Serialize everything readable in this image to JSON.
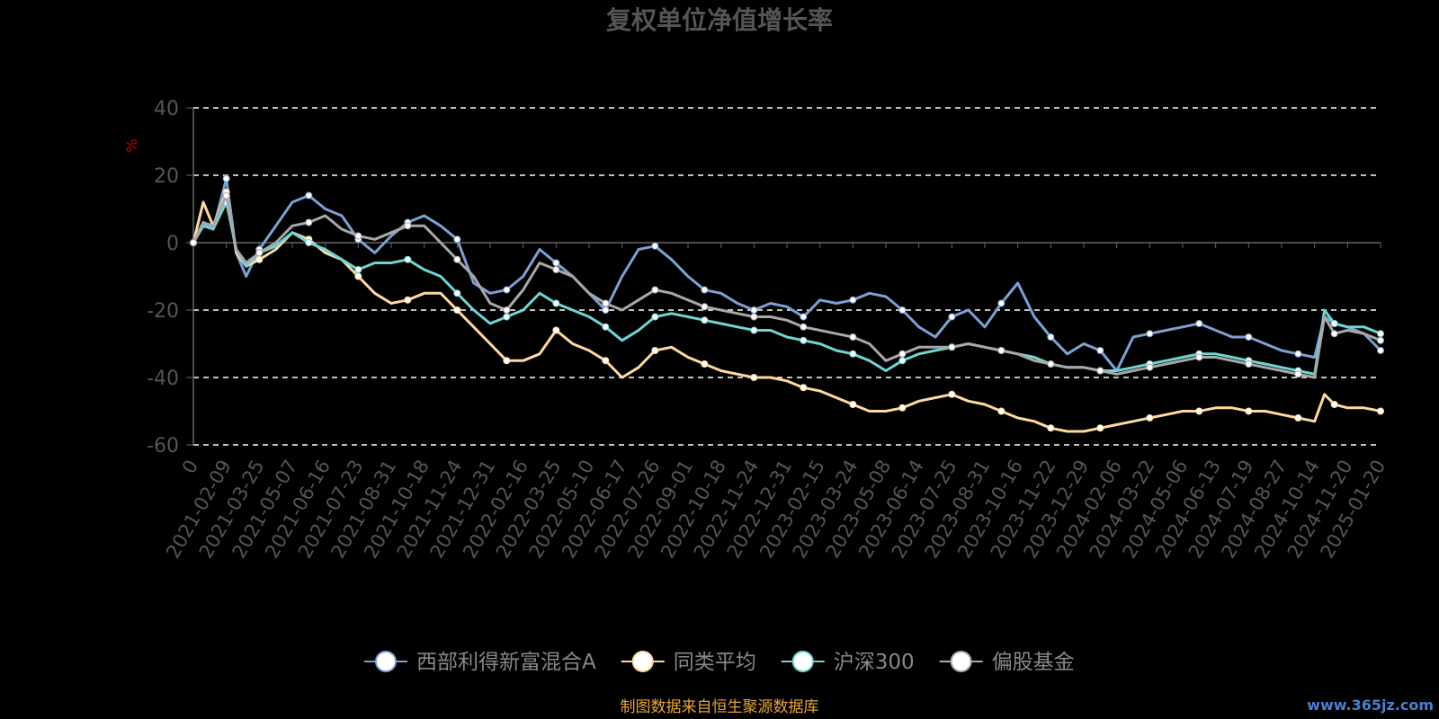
{
  "chart_data": {
    "type": "line",
    "title": "复权单位净值增长率",
    "ylabel": "%",
    "ylim": [
      -60,
      40
    ],
    "yticks": [
      40,
      20,
      0,
      -20,
      -40,
      -60
    ],
    "grid": true,
    "legend_position": "bottom",
    "x_tick_labels": [
      "0",
      "2021-02-09",
      "2021-03-25",
      "2021-05-07",
      "2021-06-16",
      "2021-07-23",
      "2021-08-31",
      "2021-10-18",
      "2021-11-24",
      "2021-12-31",
      "2022-02-16",
      "2022-03-25",
      "2022-05-10",
      "2022-06-17",
      "2022-07-26",
      "2022-09-01",
      "2022-10-18",
      "2022-11-24",
      "2022-12-31",
      "2023-02-15",
      "2023-03-24",
      "2023-05-08",
      "2023-06-14",
      "2023-07-25",
      "2023-08-31",
      "2023-10-16",
      "2023-11-22",
      "2023-12-29",
      "2024-02-06",
      "2024-03-22",
      "2024-05-06",
      "2024-06-13",
      "2024-07-19",
      "2024-08-27",
      "2024-10-14",
      "2024-11-20",
      "2025-01-20"
    ],
    "x": [
      0,
      0.3,
      0.6,
      1,
      1.3,
      1.6,
      2,
      2.5,
      3,
      3.5,
      4,
      4.5,
      5,
      5.5,
      6,
      6.5,
      7,
      7.5,
      8,
      8.5,
      9,
      9.5,
      10,
      10.5,
      11,
      11.5,
      12,
      12.5,
      13,
      13.5,
      14,
      14.5,
      15,
      15.5,
      16,
      16.5,
      17,
      17.5,
      18,
      18.5,
      19,
      19.5,
      20,
      20.5,
      21,
      21.5,
      22,
      22.5,
      23,
      23.5,
      24,
      24.5,
      25,
      25.5,
      26,
      26.5,
      27,
      27.5,
      28,
      28.5,
      29,
      29.5,
      30,
      30.5,
      31,
      31.5,
      32,
      32.5,
      33,
      33.5,
      34,
      34.3,
      34.6,
      35,
      35.5,
      36
    ],
    "series": [
      {
        "name": "西部利得新富混合A",
        "color": "#7f9fd4",
        "values": [
          0,
          6,
          4,
          19,
          -3,
          -10,
          -2,
          5,
          12,
          14,
          10,
          8,
          1,
          -3,
          2,
          6,
          8,
          5,
          1,
          -12,
          -15,
          -14,
          -10,
          -2,
          -6,
          -10,
          -15,
          -20,
          -10,
          -2,
          -1,
          -5,
          -10,
          -14,
          -15,
          -18,
          -20,
          -18,
          -19,
          -22,
          -17,
          -18,
          -17,
          -15,
          -16,
          -20,
          -25,
          -28,
          -22,
          -20,
          -25,
          -18,
          -12,
          -22,
          -28,
          -33,
          -30,
          -32,
          -38,
          -28,
          -27,
          -26,
          -25,
          -24,
          -26,
          -28,
          -28,
          -30,
          -32,
          -33,
          -34,
          -22,
          -24,
          -25,
          -27,
          -32
        ]
      },
      {
        "name": "同类平均",
        "color": "#fcd9a0",
        "values": [
          0,
          12,
          5,
          15,
          -3,
          -7,
          -5,
          -2,
          3,
          1,
          -3,
          -5,
          -10,
          -15,
          -18,
          -17,
          -15,
          -15,
          -20,
          -25,
          -30,
          -35,
          -35,
          -33,
          -26,
          -30,
          -32,
          -35,
          -40,
          -37,
          -32,
          -31,
          -34,
          -36,
          -38,
          -39,
          -40,
          -40,
          -41,
          -43,
          -44,
          -46,
          -48,
          -50,
          -50,
          -49,
          -47,
          -46,
          -45,
          -47,
          -48,
          -50,
          -52,
          -53,
          -55,
          -56,
          -56,
          -55,
          -54,
          -53,
          -52,
          -51,
          -50,
          -50,
          -49,
          -49,
          -50,
          -50,
          -51,
          -52,
          -53,
          -45,
          -48,
          -49,
          -49,
          -50
        ]
      },
      {
        "name": "沪深300",
        "color": "#70d4d4",
        "values": [
          0,
          5,
          4,
          12,
          -2,
          -7,
          -3,
          -1,
          3,
          0,
          -2,
          -5,
          -8,
          -6,
          -6,
          -5,
          -8,
          -10,
          -15,
          -20,
          -24,
          -22,
          -20,
          -15,
          -18,
          -20,
          -22,
          -25,
          -29,
          -26,
          -22,
          -21,
          -22,
          -23,
          -24,
          -25,
          -26,
          -26,
          -28,
          -29,
          -30,
          -32,
          -33,
          -35,
          -38,
          -35,
          -33,
          -32,
          -31,
          -30,
          -31,
          -32,
          -33,
          -34,
          -36,
          -37,
          -37,
          -38,
          -38,
          -37,
          -36,
          -35,
          -34,
          -33,
          -33,
          -34,
          -35,
          -36,
          -37,
          -38,
          -39,
          -20,
          -24,
          -25,
          -25,
          -27
        ]
      },
      {
        "name": "偏股基金",
        "color": "#a8a8a8",
        "values": [
          0,
          6,
          5,
          14,
          -2,
          -6,
          -3,
          0,
          5,
          6,
          8,
          4,
          2,
          1,
          3,
          5,
          5,
          0,
          -5,
          -10,
          -18,
          -20,
          -14,
          -6,
          -8,
          -10,
          -15,
          -18,
          -20,
          -17,
          -14,
          -15,
          -17,
          -19,
          -20,
          -21,
          -22,
          -22,
          -23,
          -25,
          -26,
          -27,
          -28,
          -30,
          -35,
          -33,
          -31,
          -31,
          -31,
          -30,
          -31,
          -32,
          -33,
          -35,
          -36,
          -37,
          -37,
          -38,
          -39,
          -38,
          -37,
          -36,
          -35,
          -34,
          -34,
          -35,
          -36,
          -37,
          -38,
          -39,
          -40,
          -22,
          -27,
          -26,
          -27,
          -29
        ]
      }
    ],
    "legend_color": "#888888",
    "title_color": "#555555"
  },
  "footer": {
    "source_text": "制图数据来自恒生聚源数据库",
    "source_color": "#e8a33a",
    "watermark": "www.365jz.com"
  }
}
